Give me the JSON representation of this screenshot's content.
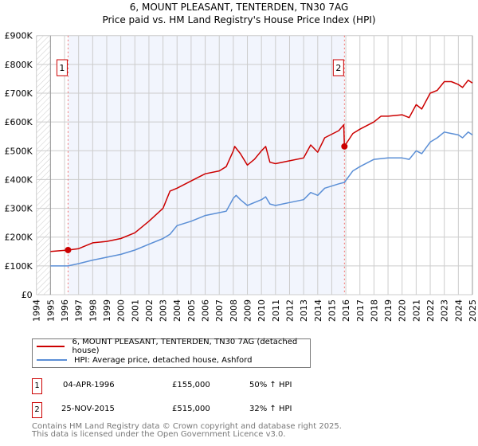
{
  "chart_data": {
    "type": "line",
    "title": "6, MOUNT PLEASANT, TENTERDEN, TN30 7AG",
    "subtitle": "Price paid vs. HM Land Registry's House Price Index (HPI)",
    "xlim": [
      1994,
      2025
    ],
    "ylim": [
      0,
      900000
    ],
    "y_ticks": [
      "£0",
      "£100K",
      "£200K",
      "£300K",
      "£400K",
      "£500K",
      "£600K",
      "£700K",
      "£800K",
      "£900K"
    ],
    "y_tick_values": [
      0,
      100000,
      200000,
      300000,
      400000,
      500000,
      600000,
      700000,
      800000,
      900000
    ],
    "x_ticks": [
      "1994",
      "1995",
      "1996",
      "1997",
      "1998",
      "1999",
      "2000",
      "2001",
      "2002",
      "2003",
      "2004",
      "2005",
      "2006",
      "2007",
      "2008",
      "2009",
      "2010",
      "2011",
      "2012",
      "2013",
      "2014",
      "2015",
      "2016",
      "2017",
      "2018",
      "2019",
      "2020",
      "2021",
      "2022",
      "2023",
      "2024",
      "2025"
    ],
    "grid": true,
    "series": [
      {
        "name": "6, MOUNT PLEASANT, TENTERDEN, TN30 7AG (detached house)",
        "color": "#cc0000",
        "x": [
          1995,
          1996.25,
          1997,
          1998,
          1999,
          2000,
          2001,
          2002,
          2003,
          2003.5,
          2004,
          2005,
          2006,
          2007,
          2007.5,
          2008,
          2008.1,
          2008.5,
          2009,
          2009.5,
          2010,
          2010.3,
          2010.6,
          2011,
          2012,
          2013,
          2013.5,
          2014,
          2014.5,
          2015.5,
          2015.85,
          2015.9,
          2016.5,
          2017,
          2018,
          2018.5,
          2019,
          2020,
          2020.5,
          2021,
          2021.4,
          2022,
          2022.5,
          2023,
          2023.5,
          2024,
          2024.3,
          2024.7,
          2025
        ],
        "y": [
          150000,
          155000,
          160000,
          180000,
          185000,
          195000,
          215000,
          255000,
          300000,
          360000,
          370000,
          395000,
          420000,
          430000,
          445000,
          500000,
          515000,
          490000,
          450000,
          470000,
          500000,
          515000,
          460000,
          455000,
          465000,
          475000,
          520000,
          495000,
          545000,
          570000,
          590000,
          515000,
          560000,
          575000,
          600000,
          620000,
          620000,
          625000,
          615000,
          660000,
          645000,
          700000,
          710000,
          740000,
          740000,
          730000,
          720000,
          745000,
          735000
        ]
      },
      {
        "name": "HPI: Average price, detached house, Ashford",
        "color": "#5b8fd6",
        "x": [
          1995,
          1996.25,
          1997,
          1998,
          1999,
          2000,
          2001,
          2002,
          2003,
          2003.5,
          2004,
          2005,
          2006,
          2007,
          2007.5,
          2008,
          2008.2,
          2008.5,
          2009,
          2009.5,
          2010,
          2010.3,
          2010.6,
          2011,
          2012,
          2013,
          2013.5,
          2014,
          2014.5,
          2015.5,
          2015.9,
          2016.5,
          2017,
          2018,
          2019,
          2020,
          2020.5,
          2021,
          2021.4,
          2022,
          2022.5,
          2023,
          2023.5,
          2024,
          2024.3,
          2024.7,
          2025
        ],
        "y": [
          100000,
          100000,
          108000,
          120000,
          130000,
          140000,
          155000,
          175000,
          195000,
          210000,
          240000,
          255000,
          275000,
          285000,
          290000,
          335000,
          345000,
          330000,
          310000,
          320000,
          330000,
          340000,
          315000,
          310000,
          320000,
          330000,
          355000,
          345000,
          370000,
          385000,
          390000,
          430000,
          445000,
          470000,
          475000,
          475000,
          470000,
          500000,
          490000,
          530000,
          545000,
          565000,
          560000,
          555000,
          545000,
          565000,
          555000
        ]
      }
    ],
    "annotations": [
      {
        "label": "1",
        "x": 1996.25,
        "y": 155000
      },
      {
        "label": "2",
        "x": 2015.9,
        "y": 515000
      }
    ],
    "shaded_range": [
      1996.25,
      2015.9
    ],
    "legend_placement": "bottom"
  },
  "transactions": [
    {
      "num": "1",
      "date": "04-APR-1996",
      "price": "£155,000",
      "hpi": "50% ↑ HPI"
    },
    {
      "num": "2",
      "date": "25-NOV-2015",
      "price": "£515,000",
      "hpi": "32% ↑ HPI"
    }
  ],
  "footer": {
    "line1": "Contains HM Land Registry data © Crown copyright and database right 2025.",
    "line2": "This data is licensed under the Open Government Licence v3.0."
  }
}
